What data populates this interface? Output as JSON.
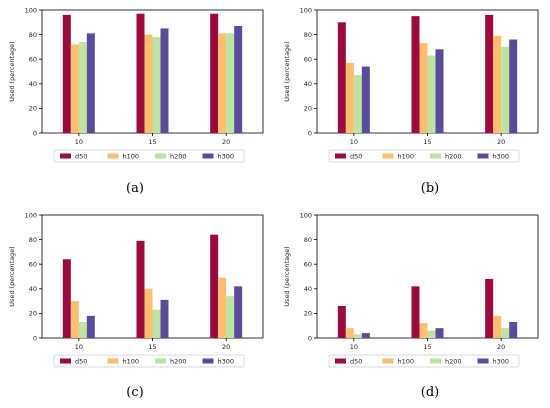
{
  "chart_data": [
    {
      "type": "bar",
      "panel": "a",
      "caption": "(a)",
      "categories": [
        "10",
        "15",
        "20"
      ],
      "ylabel": "Used (percentage)",
      "ylim": [
        0,
        100
      ],
      "yticks": [
        0,
        20,
        40,
        60,
        80,
        100
      ],
      "legend_position": "bottom",
      "series": [
        {
          "name": "d50",
          "color": "#9b0b3f",
          "values": [
            96,
            97,
            97
          ]
        },
        {
          "name": "h100",
          "color": "#fdbe6f",
          "values": [
            72,
            80,
            81
          ]
        },
        {
          "name": "h200",
          "color": "#bde3a0",
          "values": [
            74,
            78,
            81
          ]
        },
        {
          "name": "h300",
          "color": "#5b4c9b",
          "values": [
            81,
            85,
            87
          ]
        }
      ]
    },
    {
      "type": "bar",
      "panel": "b",
      "caption": "(b)",
      "categories": [
        "10",
        "15",
        "20"
      ],
      "ylabel": "Used (percentage)",
      "ylim": [
        0,
        100
      ],
      "yticks": [
        0,
        20,
        40,
        60,
        80,
        100
      ],
      "legend_position": "bottom",
      "series": [
        {
          "name": "d50",
          "color": "#9b0b3f",
          "values": [
            90,
            95,
            96
          ]
        },
        {
          "name": "h100",
          "color": "#fdbe6f",
          "values": [
            57,
            73,
            79
          ]
        },
        {
          "name": "h200",
          "color": "#bde3a0",
          "values": [
            47,
            63,
            70
          ]
        },
        {
          "name": "h300",
          "color": "#5b4c9b",
          "values": [
            54,
            68,
            76
          ]
        }
      ]
    },
    {
      "type": "bar",
      "panel": "c",
      "caption": "(c)",
      "categories": [
        "10",
        "15",
        "20"
      ],
      "ylabel": "Used (percentage)",
      "ylim": [
        0,
        100
      ],
      "yticks": [
        0,
        20,
        40,
        60,
        80,
        100
      ],
      "legend_position": "bottom",
      "series": [
        {
          "name": "d50",
          "color": "#9b0b3f",
          "values": [
            64,
            79,
            84
          ]
        },
        {
          "name": "h100",
          "color": "#fdbe6f",
          "values": [
            30,
            40,
            49
          ]
        },
        {
          "name": "h200",
          "color": "#bde3a0",
          "values": [
            13,
            23,
            34
          ]
        },
        {
          "name": "h300",
          "color": "#5b4c9b",
          "values": [
            18,
            31,
            42
          ]
        }
      ]
    },
    {
      "type": "bar",
      "panel": "d",
      "caption": "(d)",
      "categories": [
        "10",
        "15",
        "20"
      ],
      "ylabel": "Used (percentage)",
      "ylim": [
        0,
        100
      ],
      "yticks": [
        0,
        20,
        40,
        60,
        80,
        100
      ],
      "legend_position": "bottom",
      "series": [
        {
          "name": "d50",
          "color": "#9b0b3f",
          "values": [
            26,
            42,
            48
          ]
        },
        {
          "name": "h100",
          "color": "#fdbe6f",
          "values": [
            8,
            12,
            18
          ]
        },
        {
          "name": "h200",
          "color": "#bde3a0",
          "values": [
            3,
            6,
            8
          ]
        },
        {
          "name": "h300",
          "color": "#5b4c9b",
          "values": [
            4,
            8,
            13
          ]
        }
      ]
    }
  ]
}
